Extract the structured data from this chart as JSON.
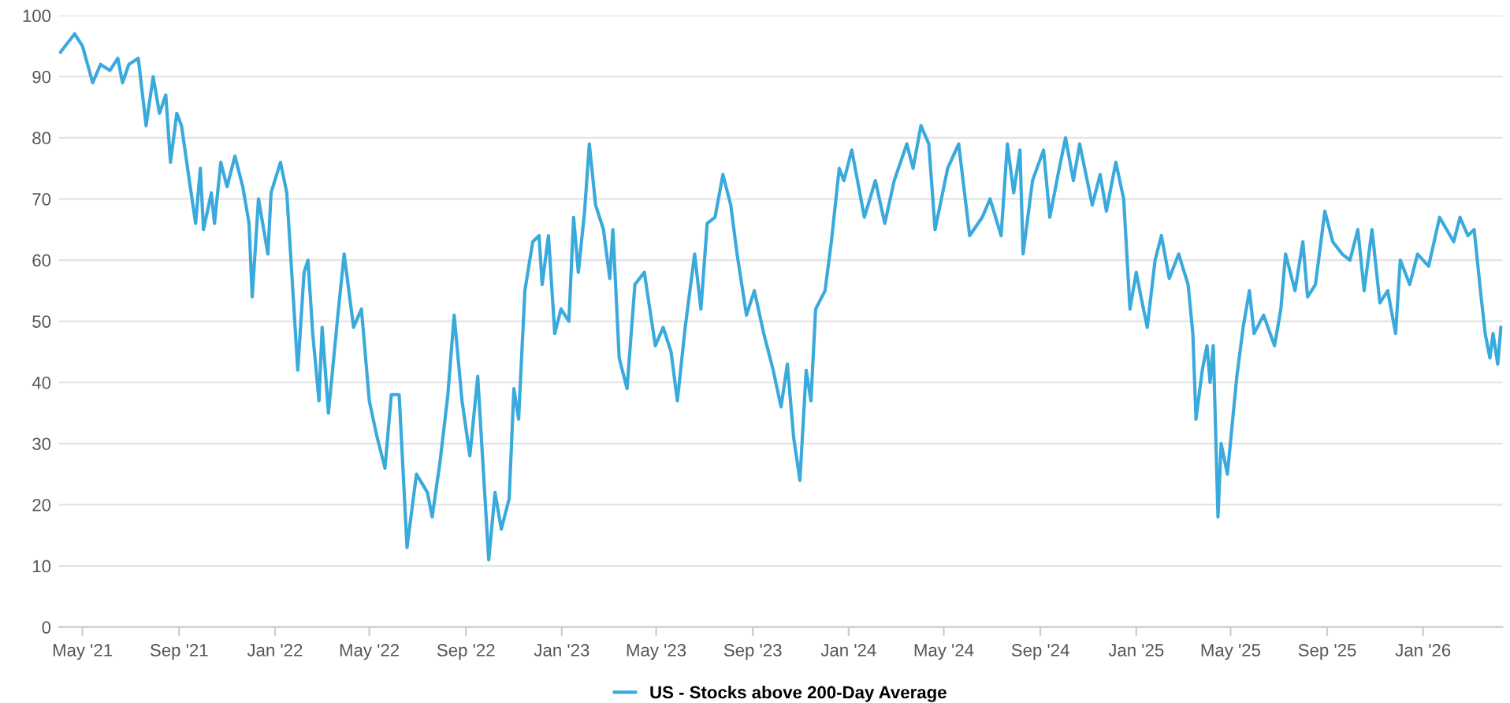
{
  "chart_data": {
    "type": "line",
    "x": [
      "2021-04-03",
      "2021-04-21",
      "2021-05-01",
      "2021-05-14",
      "2021-05-24",
      "2021-06-05",
      "2021-06-15",
      "2021-06-21",
      "2021-06-29",
      "2021-07-11",
      "2021-07-21",
      "2021-07-30",
      "2021-08-07",
      "2021-08-15",
      "2021-08-21",
      "2021-08-29",
      "2021-09-04",
      "2021-09-14",
      "2021-09-22",
      "2021-09-28",
      "2021-10-02",
      "2021-10-12",
      "2021-10-16",
      "2021-10-24",
      "2021-11-01",
      "2021-11-11",
      "2021-11-21",
      "2021-11-29",
      "2021-12-03",
      "2021-12-11",
      "2021-12-23",
      "2021-12-27",
      "2022-01-08",
      "2022-01-16",
      "2022-01-30",
      "2022-02-07",
      "2022-02-12",
      "2022-02-18",
      "2022-02-26",
      "2022-03-02",
      "2022-03-10",
      "2022-03-22",
      "2022-03-30",
      "2022-04-11",
      "2022-04-21",
      "2022-05-01",
      "2022-05-11",
      "2022-05-21",
      "2022-05-29",
      "2022-06-08",
      "2022-06-18",
      "2022-06-30",
      "2022-07-14",
      "2022-07-20",
      "2022-07-30",
      "2022-08-09",
      "2022-08-17",
      "2022-08-27",
      "2022-09-06",
      "2022-09-16",
      "2022-09-22",
      "2022-09-30",
      "2022-10-08",
      "2022-10-16",
      "2022-10-26",
      "2022-11-01",
      "2022-11-07",
      "2022-11-15",
      "2022-11-25",
      "2022-12-03",
      "2022-12-07",
      "2022-12-15",
      "2022-12-23",
      "2022-12-31",
      "2023-01-10",
      "2023-01-16",
      "2023-01-22",
      "2023-01-30",
      "2023-02-05",
      "2023-02-13",
      "2023-02-23",
      "2023-03-03",
      "2023-03-07",
      "2023-03-15",
      "2023-03-25",
      "2023-04-04",
      "2023-04-16",
      "2023-04-30",
      "2023-05-10",
      "2023-05-20",
      "2023-05-28",
      "2023-06-07",
      "2023-06-19",
      "2023-06-27",
      "2023-07-05",
      "2023-07-15",
      "2023-07-25",
      "2023-08-04",
      "2023-08-12",
      "2023-08-24",
      "2023-09-03",
      "2023-09-15",
      "2023-09-27",
      "2023-10-07",
      "2023-10-15",
      "2023-10-23",
      "2023-10-31",
      "2023-11-08",
      "2023-11-14",
      "2023-11-20",
      "2023-12-02",
      "2023-12-10",
      "2023-12-20",
      "2023-12-26",
      "2024-01-05",
      "2024-01-21",
      "2024-02-04",
      "2024-02-16",
      "2024-02-28",
      "2024-03-15",
      "2024-03-23",
      "2024-04-02",
      "2024-04-12",
      "2024-04-20",
      "2024-05-06",
      "2024-05-20",
      "2024-06-03",
      "2024-06-19",
      "2024-06-29",
      "2024-07-13",
      "2024-07-21",
      "2024-07-29",
      "2024-08-06",
      "2024-08-10",
      "2024-08-22",
      "2024-09-05",
      "2024-09-13",
      "2024-09-25",
      "2024-10-03",
      "2024-10-13",
      "2024-10-21",
      "2024-11-06",
      "2024-11-16",
      "2024-11-24",
      "2024-12-06",
      "2024-12-16",
      "2024-12-24",
      "2025-01-01",
      "2025-01-07",
      "2025-01-15",
      "2025-01-25",
      "2025-02-02",
      "2025-02-12",
      "2025-02-24",
      "2025-03-08",
      "2025-03-14",
      "2025-03-18",
      "2025-03-26",
      "2025-04-01",
      "2025-04-05",
      "2025-04-09",
      "2025-04-15",
      "2025-04-19",
      "2025-04-27",
      "2025-05-03",
      "2025-05-09",
      "2025-05-17",
      "2025-05-25",
      "2025-05-31",
      "2025-06-12",
      "2025-06-26",
      "2025-07-04",
      "2025-07-10",
      "2025-07-22",
      "2025-08-01",
      "2025-08-07",
      "2025-08-17",
      "2025-08-29",
      "2025-09-08",
      "2025-09-20",
      "2025-09-30",
      "2025-10-10",
      "2025-10-18",
      "2025-10-28",
      "2025-11-07",
      "2025-11-17",
      "2025-11-27",
      "2025-12-03",
      "2025-12-15",
      "2025-12-25",
      "2026-01-08",
      "2026-01-22",
      "2026-02-09",
      "2026-02-17",
      "2026-02-27",
      "2026-03-07",
      "2026-03-15",
      "2026-03-21",
      "2026-03-27",
      "2026-03-31",
      "2026-04-06",
      "2026-04-10"
    ],
    "series": [
      {
        "name": "US - Stocks above 200-Day Average",
        "color": "#3aaadc",
        "values": [
          94,
          97,
          95,
          89,
          92,
          91,
          93,
          89,
          92,
          93,
          82,
          90,
          84,
          87,
          76,
          84,
          82,
          73,
          66,
          75,
          65,
          71,
          66,
          76,
          72,
          77,
          72,
          66,
          54,
          70,
          61,
          71,
          76,
          71,
          42,
          58,
          60,
          48,
          37,
          49,
          35,
          51,
          61,
          49,
          52,
          37,
          31,
          26,
          38,
          38,
          13,
          25,
          22,
          18,
          27,
          38,
          51,
          37,
          28,
          41,
          28,
          11,
          22,
          16,
          21,
          39,
          34,
          55,
          63,
          64,
          56,
          64,
          48,
          52,
          50,
          67,
          58,
          68,
          79,
          69,
          65,
          57,
          65,
          44,
          39,
          56,
          58,
          46,
          49,
          45,
          37,
          49,
          61,
          52,
          66,
          67,
          74,
          69,
          61,
          51,
          55,
          48,
          42,
          36,
          43,
          31,
          24,
          42,
          37,
          52,
          55,
          63,
          75,
          73,
          78,
          67,
          73,
          66,
          73,
          79,
          75,
          82,
          79,
          65,
          75,
          79,
          64,
          67,
          70,
          64,
          79,
          71,
          78,
          61,
          73,
          78,
          67,
          75,
          80,
          73,
          79,
          69,
          74,
          68,
          76,
          70,
          52,
          58,
          54,
          49,
          60,
          64,
          57,
          61,
          56,
          48,
          34,
          42,
          46,
          40,
          46,
          18,
          30,
          25,
          33,
          41,
          49,
          55,
          48,
          51,
          46,
          52,
          61,
          55,
          63,
          54,
          56,
          68,
          63,
          61,
          60,
          65,
          55,
          65,
          53,
          55,
          48,
          60,
          56,
          61,
          59,
          67,
          63,
          67,
          64,
          65,
          55,
          48,
          44,
          48,
          43,
          49
        ]
      }
    ],
    "xlim": [
      "2021-04-01",
      "2026-04-12"
    ],
    "xticks": [
      {
        "value": "2021-05-01",
        "label": "May '21"
      },
      {
        "value": "2021-09-01",
        "label": "Sep '21"
      },
      {
        "value": "2022-01-01",
        "label": "Jan '22"
      },
      {
        "value": "2022-05-01",
        "label": "May '22"
      },
      {
        "value": "2022-09-01",
        "label": "Sep '22"
      },
      {
        "value": "2023-01-01",
        "label": "Jan '23"
      },
      {
        "value": "2023-05-01",
        "label": "May '23"
      },
      {
        "value": "2023-09-01",
        "label": "Sep '23"
      },
      {
        "value": "2024-01-01",
        "label": "Jan '24"
      },
      {
        "value": "2024-05-01",
        "label": "May '24"
      },
      {
        "value": "2024-09-01",
        "label": "Sep '24"
      },
      {
        "value": "2025-01-01",
        "label": "Jan '25"
      },
      {
        "value": "2025-05-01",
        "label": "May '25"
      },
      {
        "value": "2025-09-01",
        "label": "Sep '25"
      },
      {
        "value": "2026-01-01",
        "label": "Jan '26"
      }
    ],
    "ylim": [
      0,
      100
    ],
    "yticks": [
      0,
      10,
      20,
      30,
      40,
      50,
      60,
      70,
      80,
      90,
      100
    ],
    "grid": "y",
    "legend": "bottom",
    "marker": "none",
    "line_style": "solid"
  }
}
